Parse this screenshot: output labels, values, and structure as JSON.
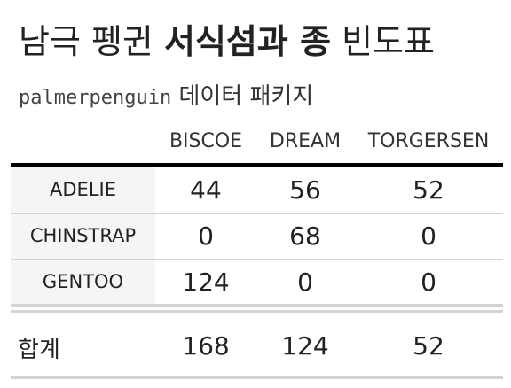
{
  "title": {
    "plain": "남극 펭귄 ",
    "bold": "서식섬과 종",
    "rest": " 빈도표"
  },
  "subtitle": {
    "mono": "palmerpenguin",
    "rest": " 데이터 패키지"
  },
  "table": {
    "columns": [
      "BISCOE",
      "DREAM",
      "TORGERSEN"
    ],
    "rows": [
      {
        "label": "ADELIE",
        "values": [
          "44",
          "56",
          "52"
        ]
      },
      {
        "label": "CHINSTRAP",
        "values": [
          "0",
          "68",
          "0"
        ]
      },
      {
        "label": "GENTOO",
        "values": [
          "124",
          "0",
          "0"
        ]
      }
    ],
    "summary": {
      "label": "합계",
      "values": [
        "168",
        "124",
        "52"
      ]
    }
  }
}
